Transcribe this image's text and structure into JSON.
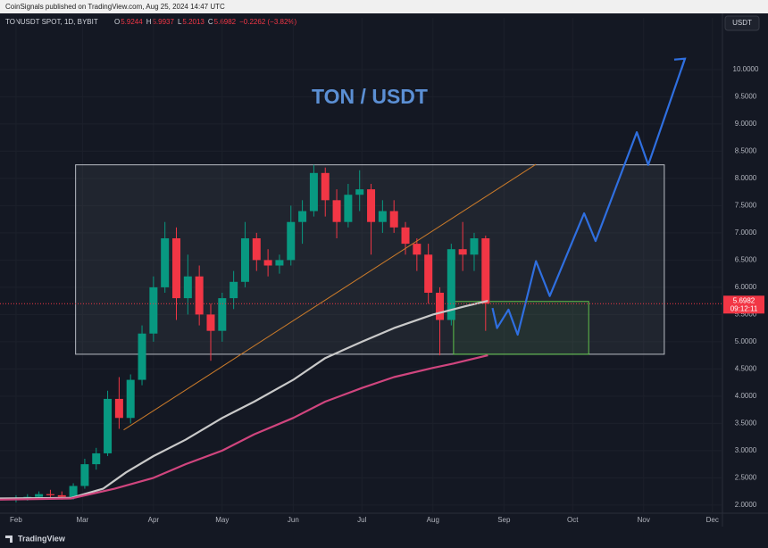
{
  "header": {
    "publisher": "CoinSignals published on TradingView.com, Aug 25, 2024 14:47 UTC",
    "symbol": "TONUSDT SPOT, 1D, BYBIT",
    "ohlc": [
      {
        "label": "O",
        "value": "5.9244"
      },
      {
        "label": "H",
        "value": "5.9937"
      },
      {
        "label": "L",
        "value": "5.2013"
      },
      {
        "label": "C",
        "value": "5.6982"
      }
    ],
    "change": "−0.2262 (−3.82%)",
    "currency": "USDT"
  },
  "footer": {
    "brand": "TradingView"
  },
  "chart_data": {
    "type": "candlestick",
    "title": "TON / USDT",
    "xlim": [
      "2024-01-25",
      "2024-12-05"
    ],
    "ylim": [
      1.85,
      10.95
    ],
    "xticks": [
      {
        "value": "2024-02-01",
        "label": "Feb"
      },
      {
        "value": "2024-03-01",
        "label": "Mar"
      },
      {
        "value": "2024-04-01",
        "label": "Apr"
      },
      {
        "value": "2024-05-01",
        "label": "May"
      },
      {
        "value": "2024-06-01",
        "label": "Jun"
      },
      {
        "value": "2024-07-01",
        "label": "Jul"
      },
      {
        "value": "2024-08-01",
        "label": "Aug"
      },
      {
        "value": "2024-09-01",
        "label": "Sep"
      },
      {
        "value": "2024-10-01",
        "label": "Oct"
      },
      {
        "value": "2024-11-01",
        "label": "Nov"
      },
      {
        "value": "2024-12-01",
        "label": "Dec"
      }
    ],
    "yticks": [
      {
        "value": 2,
        "label": "2.0000"
      },
      {
        "value": 2.5,
        "label": "2.5000"
      },
      {
        "value": 3,
        "label": "3.0000"
      },
      {
        "value": 3.5,
        "label": "3.5000"
      },
      {
        "value": 4,
        "label": "4.0000"
      },
      {
        "value": 4.5,
        "label": "4.5000"
      },
      {
        "value": 5,
        "label": "5.0000"
      },
      {
        "value": 5.5,
        "label": "5.5000"
      },
      {
        "value": 6,
        "label": "6.0000"
      },
      {
        "value": 6.5,
        "label": "6.5000"
      },
      {
        "value": 7,
        "label": "7.0000"
      },
      {
        "value": 7.5,
        "label": "7.5000"
      },
      {
        "value": 8,
        "label": "8.0000"
      },
      {
        "value": 8.5,
        "label": "8.5000"
      },
      {
        "value": 9,
        "label": "9.0000"
      },
      {
        "value": 9.5,
        "label": "9.5000"
      },
      {
        "value": 10,
        "label": "10.0000"
      }
    ],
    "up_color": "#089981",
    "down_color": "#f23645",
    "candles": {
      "x": [
        "2024-02-01",
        "2024-02-06",
        "2024-02-11",
        "2024-02-16",
        "2024-02-21",
        "2024-02-26",
        "2024-03-02",
        "2024-03-07",
        "2024-03-12",
        "2024-03-17",
        "2024-03-22",
        "2024-03-27",
        "2024-04-01",
        "2024-04-06",
        "2024-04-11",
        "2024-04-16",
        "2024-04-21",
        "2024-04-26",
        "2024-05-01",
        "2024-05-06",
        "2024-05-11",
        "2024-05-16",
        "2024-05-21",
        "2024-05-26",
        "2024-05-31",
        "2024-06-05",
        "2024-06-10",
        "2024-06-15",
        "2024-06-20",
        "2024-06-25",
        "2024-06-30",
        "2024-07-05",
        "2024-07-10",
        "2024-07-15",
        "2024-07-20",
        "2024-07-25",
        "2024-07-30",
        "2024-08-04",
        "2024-08-09",
        "2024-08-14",
        "2024-08-19",
        "2024-08-24"
      ],
      "open": [
        2.1,
        2.12,
        2.15,
        2.2,
        2.18,
        2.15,
        2.35,
        2.75,
        2.95,
        3.95,
        3.6,
        4.3,
        5.15,
        6.0,
        6.9,
        5.8,
        6.2,
        5.5,
        5.2,
        5.8,
        6.1,
        6.9,
        6.5,
        6.4,
        6.5,
        7.2,
        7.4,
        8.1,
        7.6,
        7.2,
        7.7,
        7.8,
        7.2,
        7.4,
        7.1,
        6.8,
        6.6,
        5.9,
        5.4,
        6.7,
        6.6,
        6.9
      ],
      "high": [
        2.18,
        2.2,
        2.25,
        2.28,
        2.25,
        2.4,
        2.85,
        3.05,
        4.1,
        4.35,
        4.4,
        5.3,
        6.2,
        7.2,
        7.1,
        6.6,
        6.4,
        5.7,
        5.9,
        6.3,
        7.2,
        7.0,
        6.7,
        6.6,
        7.5,
        7.6,
        8.25,
        8.2,
        7.8,
        7.9,
        8.15,
        7.9,
        7.6,
        7.6,
        7.2,
        6.9,
        6.8,
        6.0,
        6.8,
        7.2,
        7.0,
        6.95
      ],
      "low": [
        2.05,
        2.08,
        2.1,
        2.12,
        2.1,
        2.1,
        2.3,
        2.65,
        2.9,
        3.4,
        3.5,
        4.2,
        5.0,
        5.9,
        5.4,
        5.5,
        5.3,
        4.65,
        5.0,
        5.6,
        6.0,
        6.3,
        6.2,
        6.25,
        6.4,
        6.8,
        7.3,
        7.3,
        6.9,
        7.1,
        7.4,
        6.6,
        7.0,
        7.0,
        6.6,
        6.3,
        5.7,
        4.75,
        5.3,
        6.3,
        6.3,
        5.2
      ],
      "close": [
        2.12,
        2.15,
        2.2,
        2.18,
        2.15,
        2.35,
        2.75,
        2.95,
        3.95,
        3.6,
        4.3,
        5.15,
        6.0,
        6.9,
        5.8,
        6.2,
        5.5,
        5.2,
        5.8,
        6.1,
        6.9,
        6.5,
        6.4,
        6.5,
        7.2,
        7.4,
        8.1,
        7.6,
        7.2,
        7.7,
        7.8,
        7.2,
        7.4,
        7.1,
        6.8,
        6.6,
        5.9,
        5.4,
        6.7,
        6.6,
        6.9,
        5.7
      ]
    },
    "lines": [
      {
        "color": "#c9c9c9",
        "x": [
          "2024-01-25",
          "2024-02-25",
          "2024-03-10",
          "2024-03-20",
          "2024-04-01",
          "2024-04-15",
          "2024-05-01",
          "2024-05-15",
          "2024-06-01",
          "2024-06-15",
          "2024-07-01",
          "2024-07-15",
          "2024-08-01",
          "2024-08-15",
          "2024-08-25"
        ],
        "values": [
          2.12,
          2.13,
          2.3,
          2.6,
          2.9,
          3.2,
          3.6,
          3.9,
          4.3,
          4.7,
          5.0,
          5.25,
          5.5,
          5.65,
          5.75
        ]
      },
      {
        "color": "#d0457e",
        "x": [
          "2024-01-25",
          "2024-02-25",
          "2024-03-15",
          "2024-04-01",
          "2024-04-15",
          "2024-05-01",
          "2024-05-15",
          "2024-06-01",
          "2024-06-15",
          "2024-07-01",
          "2024-07-15",
          "2024-08-01",
          "2024-08-10",
          "2024-08-25"
        ],
        "values": [
          2.1,
          2.12,
          2.3,
          2.5,
          2.75,
          3.0,
          3.3,
          3.6,
          3.9,
          4.15,
          4.35,
          4.52,
          4.6,
          4.75
        ]
      },
      {
        "color": "#c97a2a",
        "x": [
          "2024-03-19",
          "2024-09-15"
        ],
        "values": [
          3.38,
          8.26
        ]
      },
      {
        "color": "#2f6fe0",
        "x": [
          "2024-08-27",
          "2024-08-29",
          "2024-09-03",
          "2024-09-07",
          "2024-09-15",
          "2024-09-21",
          "2024-10-06",
          "2024-10-11",
          "2024-10-29",
          "2024-11-03",
          "2024-11-19"
        ],
        "values": [
          5.62,
          5.25,
          5.59,
          5.13,
          6.48,
          5.84,
          7.36,
          6.85,
          8.85,
          8.25,
          10.2
        ]
      }
    ],
    "boxes": [
      {
        "color": "#b8bcc4",
        "x": [
          "2024-02-27",
          "2024-11-10"
        ],
        "values": [
          4.77,
          8.25
        ]
      },
      {
        "color": "#5fc24a",
        "x": [
          "2024-08-10",
          "2024-10-08"
        ],
        "values": [
          4.77,
          5.74
        ]
      }
    ],
    "last_price": {
      "value": 5.6982,
      "label": "5.6982",
      "countdown": "09:12:11",
      "color": "#f23645"
    }
  }
}
